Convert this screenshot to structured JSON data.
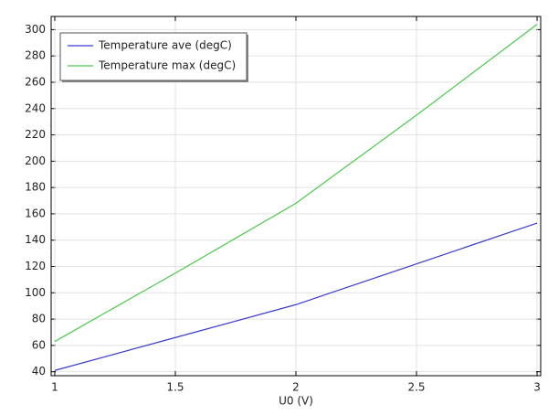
{
  "chart_data": {
    "type": "line",
    "x_label": "U0 (V)",
    "x": [
      1,
      1.5,
      2,
      2.5,
      3
    ],
    "series": [
      {
        "name": "Temperature ave (degC)",
        "color": "#3a3ad0",
        "values": [
          41,
          66,
          91,
          122,
          153
        ]
      },
      {
        "name": "Temperature max (degC)",
        "color": "#4cc84c",
        "values": [
          63,
          115,
          168,
          235,
          304
        ]
      }
    ],
    "xlim": [
      0.985,
      3.015
    ],
    "xticks": [
      1,
      1.5,
      2,
      2.5,
      3
    ],
    "ylim": [
      37,
      310
    ],
    "yticks": [
      40,
      60,
      80,
      100,
      120,
      140,
      160,
      180,
      200,
      220,
      240,
      260,
      280,
      300
    ],
    "grid": true,
    "legend": "top-left"
  }
}
